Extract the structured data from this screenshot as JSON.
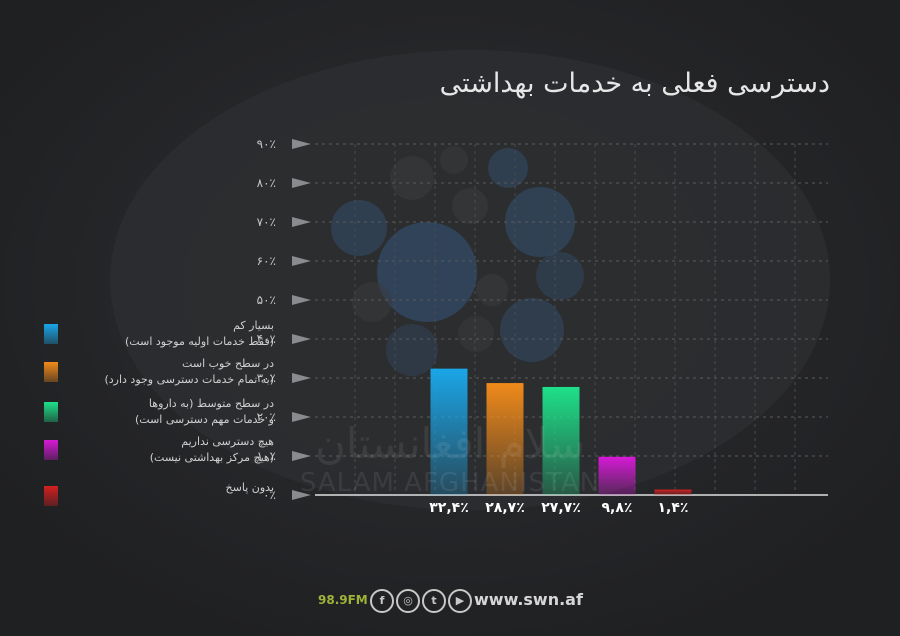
{
  "header": {
    "title": "دسترسی فعلی به خدمات بهداشتی"
  },
  "chart_data": {
    "type": "bar",
    "title": "دسترسی فعلی به خدمات بهداشتی",
    "xlabel": "",
    "ylabel": "",
    "ylim": [
      0,
      90
    ],
    "grid": true,
    "legend_position": "left",
    "y_ticks": [
      "۰٪",
      "۱۰٪",
      "۲۰٪",
      "۳۰٪",
      "۴۰٪",
      "۵۰٪",
      "۶۰٪",
      "۷۰٪",
      "۸۰٪",
      "۹۰٪"
    ],
    "categories": [
      "بسیار کم (فقط خدمات اولیه موجود است)",
      "در سطح خوب است (به تمام خدمات دسترسی وجود دارد)",
      "در سطح متوسط (به داروها و خدمات مهم دسترسی است)",
      "هیچ دسترسی نداریم (هیچ مرکز بهداشتی نیست)",
      "بدون پاسخ"
    ],
    "values": [
      32.4,
      28.7,
      27.7,
      9.8,
      1.4
    ],
    "value_labels": [
      "۳۲,۴٪",
      "۲۸,۷٪",
      "۲۷,۷٪",
      "۹,۸٪",
      "۱,۴٪"
    ],
    "colors": [
      "#1aa6e8",
      "#f08a1a",
      "#1ee08a",
      "#d61ad6",
      "#d42020"
    ]
  },
  "legend": {
    "items": [
      {
        "line1": "بسیار کم",
        "line2": "(فقط خدمات اولیه موجود است)",
        "color": "#1aa6e8"
      },
      {
        "line1": "در سطح خوب است",
        "line2": "(به تمام خدمات دسترسی وجود دارد)",
        "color": "#f08a1a"
      },
      {
        "line1": "در سطح متوسط (به داروها",
        "line2": "و خدمات مهم دسترسی است)",
        "color": "#1ee08a"
      },
      {
        "line1": "هیچ دسترسی نداریم",
        "line2": "(هیچ مرکز بهداشتی نیست)",
        "color": "#d61ad6"
      },
      {
        "line1": "بدون پاسخ",
        "line2": "",
        "color": "#d42020"
      }
    ]
  },
  "watermark": {
    "fa": "سلام افغانستان",
    "en": "SALAM AFGHANISTAN"
  },
  "footer": {
    "frequency": "98.9FM",
    "website": "www.swn.af",
    "social_icons": [
      "facebook-icon",
      "instagram-icon",
      "twitter-icon",
      "youtube-icon"
    ]
  }
}
